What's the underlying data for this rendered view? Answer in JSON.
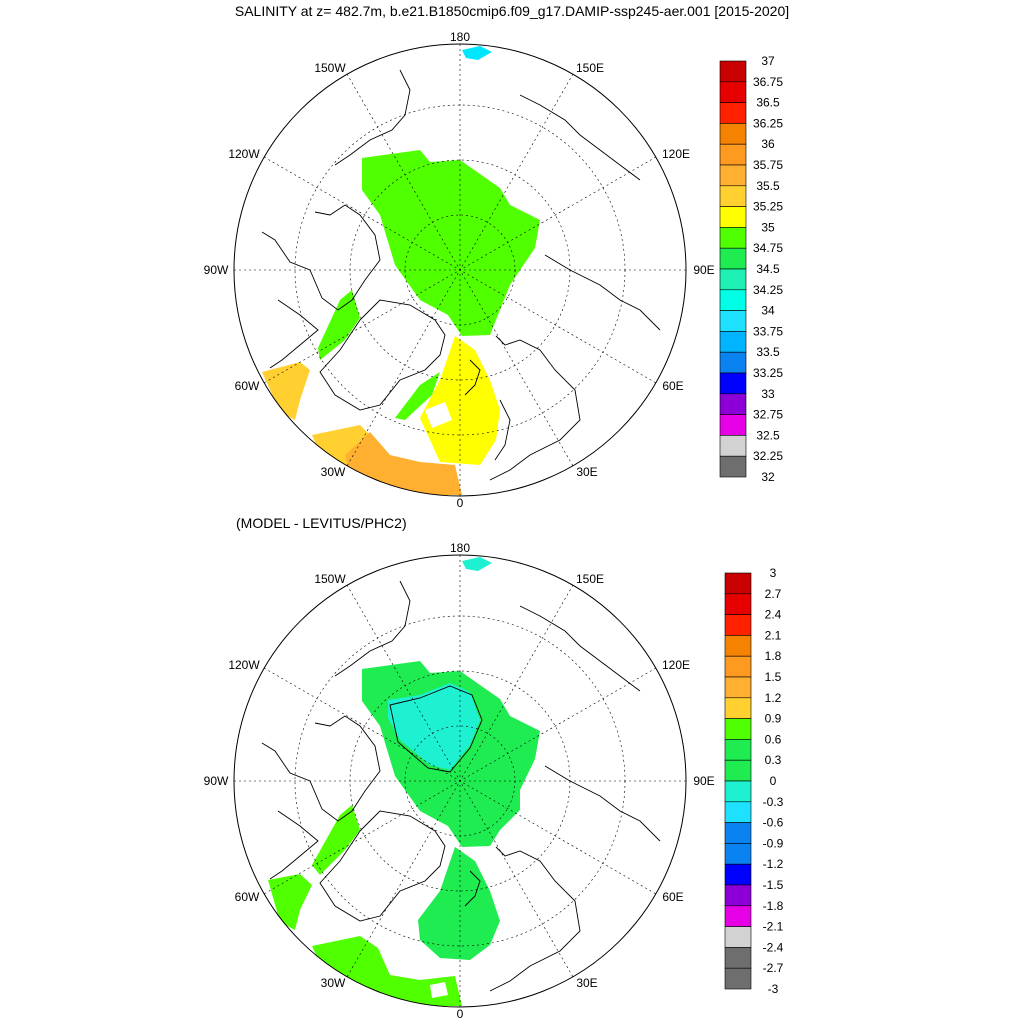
{
  "title": "SALINITY at z= 482.7m, b.e21.B1850cmip6.f09_g17.DAMIP-ssp245-aer.001 [2015-2020]",
  "diff_title": "(MODEL - LEVITUS/PHC2)",
  "longitude_labels": {
    "lon_180": "180",
    "lon_150e": "150E",
    "lon_120e": "120E",
    "lon_90e": "90E",
    "lon_60e": "60E",
    "lon_30e": "30E",
    "lon_0": "0",
    "lon_30w": "30W",
    "lon_60w": "60W",
    "lon_90w": "90W",
    "lon_120w": "120W",
    "lon_150w": "150W"
  },
  "colorbar_top": {
    "labels": [
      "37",
      "36.75",
      "36.5",
      "36.25",
      "36",
      "35.75",
      "35.5",
      "35.25",
      "35",
      "34.75",
      "34.5",
      "34.25",
      "34",
      "33.75",
      "33.5",
      "33.25",
      "33",
      "32.75",
      "32.5",
      "32.25",
      "32"
    ],
    "colors": [
      "#c80000",
      "#e60000",
      "#ff2000",
      "#f58200",
      "#ff9a20",
      "#ffb030",
      "#ffd030",
      "#ffff00",
      "#50ff00",
      "#1eec50",
      "#1ef0b4",
      "#00ffe6",
      "#1ee1ff",
      "#00b4ff",
      "#0a82f0",
      "#0000ff",
      "#8c00d7",
      "#e600e6",
      "#d2d2d2",
      "#6e6e6e"
    ]
  },
  "colorbar_bottom": {
    "labels": [
      "3",
      "2.7",
      "2.4",
      "2.1",
      "1.8",
      "1.5",
      "1.2",
      "0.9",
      "0.6",
      "0.3",
      "0",
      "-0.3",
      "-0.6",
      "-0.9",
      "-1.2",
      "-1.5",
      "-1.8",
      "-2.1",
      "-2.4",
      "-2.7",
      "-3"
    ],
    "colors": [
      "#c80000",
      "#e60000",
      "#ff2000",
      "#f58200",
      "#ff9a20",
      "#ffb030",
      "#ffd030",
      "#50ff00",
      "#1eec50",
      "#1eec50",
      "#1ef0d2",
      "#1ee1ff",
      "#0a82f0",
      "#0a82f0",
      "#0000ff",
      "#8c00d7",
      "#e600e6",
      "#d2d2d2",
      "#6e6e6e",
      "#6e6e6e"
    ]
  },
  "map_colors": {
    "top_green": "#50ff00",
    "top_yellow": "#ffff00",
    "top_gold": "#ffd030",
    "top_orange": "#ffb030",
    "top_cyan": "#00e6ff",
    "bottom_green": "#1eec50",
    "bottom_lime": "#50ff00",
    "bottom_cyan": "#1ef0d2"
  }
}
